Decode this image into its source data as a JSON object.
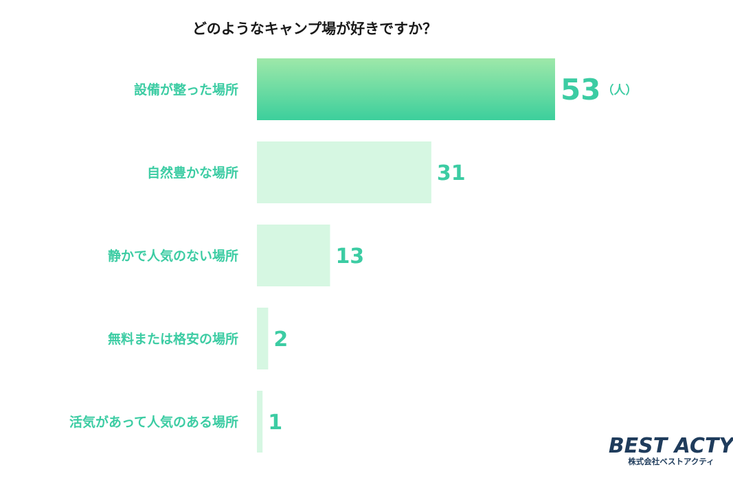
{
  "chart_data": {
    "type": "bar",
    "orientation": "horizontal",
    "title": "どのようなキャンプ場が好きですか？",
    "categories": [
      "設備が整った場所",
      "自然豊かな場所",
      "静かで人気のない場所",
      "無料または格安の場所",
      "活気があって人気のある場所"
    ],
    "values": [
      53,
      31,
      13,
      2,
      1
    ],
    "unit": "（人）",
    "highlight_index": 0,
    "grid": false,
    "legend": "none"
  },
  "colors": {
    "highlight_top": "#9ee8a9",
    "highlight_bottom": "#3ccf9c",
    "bar": "#d6f7e2",
    "label": "#3ccca3",
    "title": "#1a1a1a",
    "logo": "#1f3c5c"
  },
  "logo": {
    "name": "BEST ACTY",
    "company": "株式会社ベストアクティ"
  }
}
